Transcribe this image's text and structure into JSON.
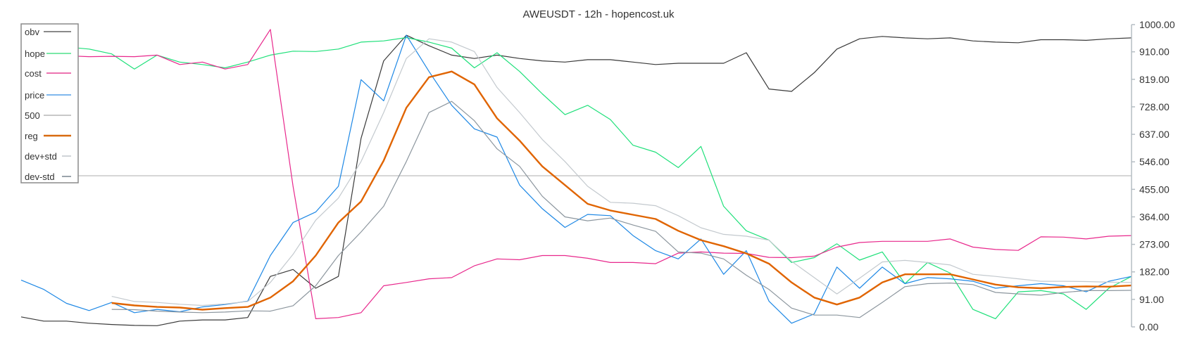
{
  "chart_data": {
    "type": "line",
    "title": "AWEUSDT - 12h - hopencost.uk",
    "ylim": [
      0,
      1000
    ],
    "y_ticks": [
      "1000.00",
      "910.00",
      "819.00",
      "728.00",
      "637.00",
      "546.00",
      "455.00",
      "364.00",
      "273.00",
      "182.00",
      "91.00",
      "0.00"
    ],
    "y_axis_side": "right",
    "grid": false,
    "legend_position": "top-left",
    "series": [
      {
        "name": "obv",
        "color": "#3a3a3a",
        "legend_color": "#8a8a8a",
        "width": 1.2,
        "values": [
          33,
          19,
          19,
          12,
          8,
          5,
          4,
          19,
          23,
          23,
          31,
          167,
          190,
          128,
          167,
          624,
          880,
          965,
          930,
          899,
          888,
          899,
          888,
          880,
          876,
          884,
          884,
          876,
          868,
          872,
          872,
          872,
          907,
          787,
          779,
          841,
          919,
          953,
          961,
          956,
          953,
          956,
          946,
          942,
          940,
          950,
          950,
          948,
          953,
          956
        ]
      },
      {
        "name": "hope",
        "color": "#1fe07a",
        "legend_color": "#7be8a8",
        "width": 1.2,
        "values": [
          922,
          919,
          926,
          919,
          903,
          853,
          899,
          876,
          868,
          857,
          876,
          899,
          912,
          911,
          919,
          942,
          946,
          957,
          942,
          922,
          857,
          907,
          845,
          771,
          702,
          733,
          686,
          601,
          578,
          527,
          597,
          399,
          318,
          287,
          213,
          229,
          275,
          221,
          248,
          143,
          213,
          178,
          58,
          27,
          116,
          120,
          109,
          58,
          128,
          167
        ]
      },
      {
        "name": "cost",
        "color": "#e8288c",
        "legend_color": "#ec74b0",
        "width": 1.2,
        "values": [
          897,
          897,
          897,
          894,
          895,
          894,
          899,
          868,
          876,
          853,
          868,
          984,
          465,
          27,
          31,
          47,
          136,
          147,
          159,
          163,
          202,
          225,
          222,
          236,
          236,
          227,
          213,
          213,
          209,
          244,
          248,
          244,
          243,
          230,
          229,
          234,
          264,
          279,
          283,
          283,
          283,
          291,
          264,
          256,
          253,
          298,
          297,
          291,
          300,
          302
        ]
      },
      {
        "name": "price",
        "color": "#1e88e5",
        "legend_color": "#7fb8ee",
        "width": 1.2,
        "values": [
          155,
          124,
          78,
          54,
          81,
          47,
          58,
          50,
          66,
          74,
          85,
          236,
          345,
          380,
          465,
          818,
          748,
          965,
          845,
          733,
          655,
          628,
          469,
          391,
          329,
          372,
          368,
          302,
          252,
          225,
          291,
          174,
          252,
          85,
          12,
          43,
          198,
          128,
          198,
          143,
          163,
          159,
          151,
          128,
          136,
          143,
          136,
          116,
          151,
          167
        ]
      },
      {
        "name": "500",
        "color": "#c8c8c8",
        "legend_color": "#c8c8c8",
        "width": 1.6,
        "values": [
          500,
          500,
          500,
          500,
          500,
          500,
          500,
          500,
          500,
          500,
          500,
          500,
          500,
          500,
          500,
          500,
          500,
          500,
          500,
          500,
          500,
          500,
          500,
          500,
          500,
          500,
          500,
          500,
          500,
          500,
          500,
          500,
          500,
          500,
          500,
          500,
          500,
          500,
          500,
          500,
          500,
          500,
          500,
          500,
          500,
          500,
          500,
          500,
          500,
          500
        ]
      },
      {
        "name": "reg",
        "color": "#e06400",
        "legend_color": "#d86a10",
        "width": 2.4,
        "values": [
          null,
          null,
          null,
          null,
          79,
          71,
          66,
          64,
          57,
          62,
          66,
          97,
          151,
          236,
          345,
          415,
          550,
          725,
          826,
          845,
          802,
          690,
          616,
          531,
          469,
          407,
          385,
          371,
          357,
          318,
          287,
          267,
          243,
          209,
          147,
          97,
          74,
          97,
          147,
          174,
          174,
          174,
          157,
          140,
          131,
          128,
          132,
          134,
          133,
          137
        ]
      },
      {
        "name": "dev+std",
        "color": "#c3c9ce",
        "legend_color": "#d0d4d8",
        "width": 1.2,
        "values": [
          null,
          null,
          null,
          null,
          101,
          84,
          81,
          75,
          71,
          76,
          84,
          147,
          240,
          353,
          426,
          547,
          709,
          888,
          953,
          942,
          911,
          792,
          709,
          620,
          547,
          465,
          412,
          409,
          401,
          368,
          328,
          306,
          300,
          287,
          217,
          163,
          109,
          161,
          215,
          220,
          213,
          205,
          174,
          167,
          159,
          151,
          151,
          150,
          148,
          147
        ]
      },
      {
        "name": "dev-std",
        "color": "#8c969e",
        "legend_color": "#9aa4ab",
        "width": 1.2,
        "values": [
          null,
          null,
          null,
          null,
          58,
          57,
          52,
          49,
          47,
          49,
          53,
          52,
          70,
          136,
          236,
          314,
          399,
          547,
          709,
          746,
          682,
          589,
          531,
          432,
          364,
          351,
          360,
          337,
          316,
          248,
          244,
          225,
          171,
          124,
          62,
          39,
          39,
          31,
          81,
          133,
          143,
          145,
          140,
          114,
          109,
          105,
          114,
          120,
          120,
          121
        ]
      }
    ]
  }
}
